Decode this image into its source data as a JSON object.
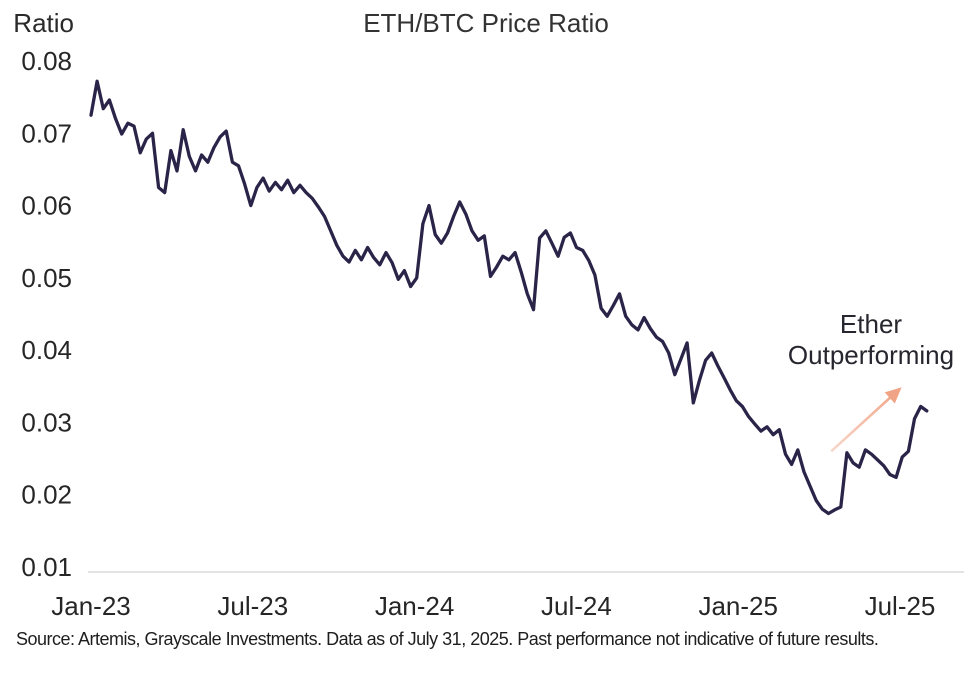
{
  "chart_data": {
    "type": "line",
    "title": "ETH/BTC Price Ratio",
    "ylabel": "Ratio",
    "xlabel": "",
    "grid": false,
    "legend": "none",
    "ylim": [
      0.01,
      0.08
    ],
    "y_tick_values": [
      0.08,
      0.07,
      0.06,
      0.05,
      0.04,
      0.03,
      0.02,
      0.01
    ],
    "y_tick_labels": [
      "0.08",
      "0.07",
      "0.06",
      "0.05",
      "0.04",
      "0.03",
      "0.02",
      "0.01"
    ],
    "x_tick_labels": [
      "Jan-23",
      "Jul-23",
      "Jan-24",
      "Jul-24",
      "Jan-25",
      "Jul-25"
    ],
    "x_tick_months": [
      0,
      6,
      12,
      18,
      24,
      30
    ],
    "series": [
      {
        "name": "ETH/BTC price ratio",
        "color": "#2a2449",
        "x_start_month": 0,
        "x_step_months": 0.2279,
        "values": [
          0.0725,
          0.0772,
          0.0734,
          0.0746,
          0.072,
          0.0699,
          0.0714,
          0.071,
          0.0673,
          0.0692,
          0.07,
          0.0625,
          0.0618,
          0.0676,
          0.0648,
          0.0705,
          0.0668,
          0.0648,
          0.067,
          0.066,
          0.068,
          0.0695,
          0.0703,
          0.066,
          0.0655,
          0.063,
          0.06,
          0.0625,
          0.0638,
          0.062,
          0.0632,
          0.0622,
          0.0635,
          0.0618,
          0.0628,
          0.0618,
          0.061,
          0.0598,
          0.0585,
          0.0565,
          0.0545,
          0.053,
          0.0522,
          0.0538,
          0.0525,
          0.0542,
          0.0528,
          0.0518,
          0.0535,
          0.0521,
          0.0498,
          0.051,
          0.0488,
          0.05,
          0.0575,
          0.06,
          0.056,
          0.0548,
          0.0562,
          0.0585,
          0.0605,
          0.0588,
          0.0565,
          0.0552,
          0.0558,
          0.0502,
          0.0515,
          0.053,
          0.0525,
          0.0535,
          0.0508,
          0.0478,
          0.0456,
          0.0555,
          0.0565,
          0.0548,
          0.053,
          0.0556,
          0.0562,
          0.0542,
          0.0538,
          0.0524,
          0.0504,
          0.0458,
          0.0447,
          0.0462,
          0.0478,
          0.0447,
          0.0435,
          0.0428,
          0.0445,
          0.043,
          0.0418,
          0.0412,
          0.0396,
          0.0366,
          0.0388,
          0.041,
          0.0327,
          0.0358,
          0.0386,
          0.0396,
          0.0378,
          0.0362,
          0.0345,
          0.033,
          0.0322,
          0.0308,
          0.0298,
          0.0288,
          0.0294,
          0.0283,
          0.029,
          0.0256,
          0.0242,
          0.0262,
          0.0232,
          0.0212,
          0.0192,
          0.018,
          0.0174,
          0.0179,
          0.0183,
          0.0258,
          0.0244,
          0.0238,
          0.0262,
          0.0256,
          0.0248,
          0.024,
          0.0228,
          0.0224,
          0.0252,
          0.026,
          0.0305,
          0.0322,
          0.0316
        ]
      }
    ],
    "annotation": {
      "text": [
        "Ether",
        "Outperforming"
      ],
      "arrow": {
        "from_month": 27.45,
        "from_value": 0.026,
        "to_month": 29.95,
        "to_value": 0.0345
      },
      "arrow_color": "#f0a385",
      "arrow_tail_color": "#f9d8cb"
    }
  },
  "source_note": "Source: Artemis, Grayscale Investments. Data as of July 31, 2025. Past performance not indicative of future results.",
  "colors": {
    "background": "#ffffff",
    "line": "#2a2449",
    "axis_line": "#e3e3e3",
    "tick_text": "#262626",
    "title_text": "#333333"
  }
}
